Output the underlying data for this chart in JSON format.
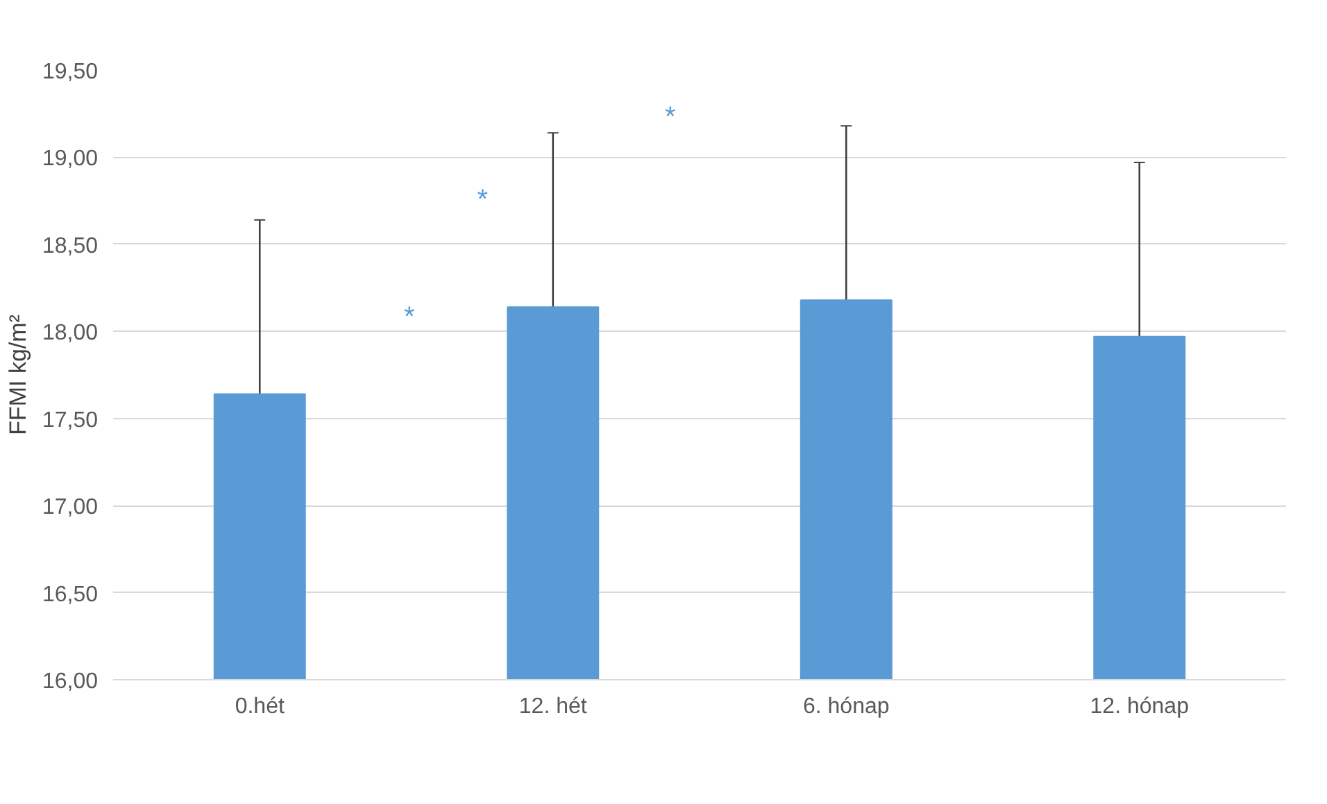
{
  "chart_data": {
    "type": "bar",
    "ylabel": "FFMI kg/m²",
    "categories": [
      "0.hét",
      "12. hét",
      "6. hónap",
      "12. hónap"
    ],
    "values": [
      17.64,
      18.14,
      18.18,
      17.97
    ],
    "errors": [
      1,
      1,
      1,
      1
    ],
    "color": "#5b9bd5",
    "ylim": [
      16,
      19.5
    ],
    "yticks": [
      {
        "value": 16,
        "label": "16,00"
      },
      {
        "value": 16.5,
        "label": "16,50"
      },
      {
        "value": 17,
        "label": "17,00"
      },
      {
        "value": 17.5,
        "label": "17,50"
      },
      {
        "value": 18,
        "label": "18,00"
      },
      {
        "value": 18.5,
        "label": "18,50"
      },
      {
        "value": 19,
        "label": "19,00"
      },
      {
        "value": 19.5,
        "label": "19,50"
      }
    ],
    "grid": "y",
    "annotations": [
      "*",
      "*",
      "*"
    ]
  }
}
